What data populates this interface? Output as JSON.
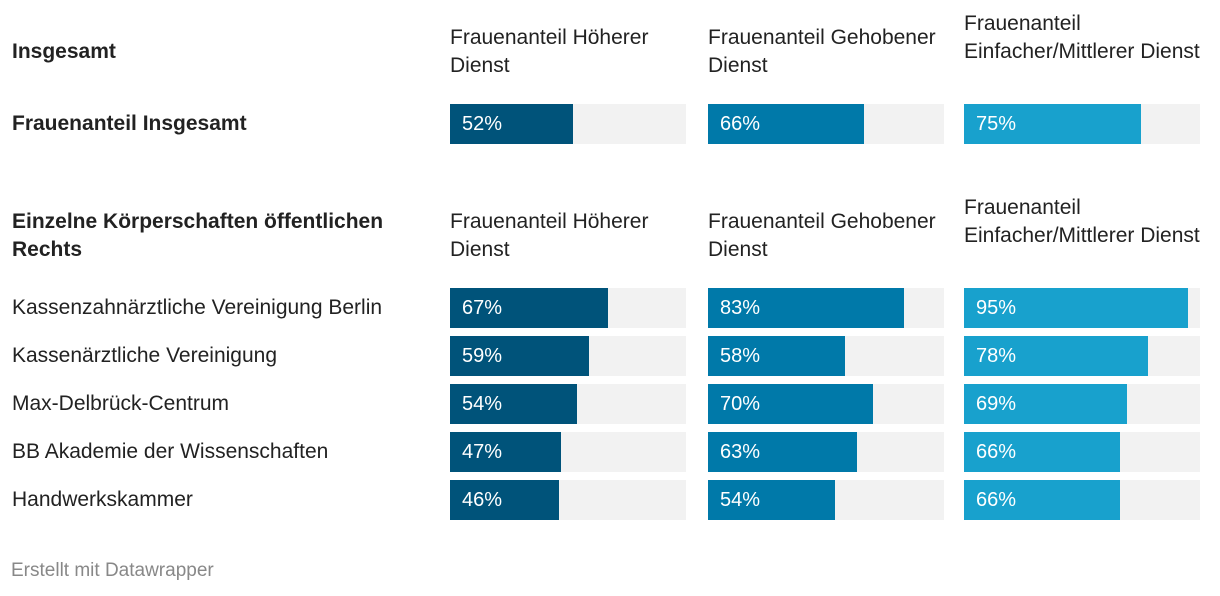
{
  "chart_data": {
    "type": "table",
    "columns": [
      "Frauenanteil Höherer Dienst",
      "Frauenanteil Gehobener Dienst",
      "Frauenanteil Einfacher/Mittlerer Dienst"
    ],
    "column_colors": [
      "#00537a",
      "#0079a9",
      "#18a1cd"
    ],
    "unit": "%",
    "value_range": [
      0,
      100
    ],
    "sections": [
      {
        "title": "Insgesamt",
        "rows": [
          {
            "label": "Frauenanteil Insgesamt",
            "values": [
              52,
              66,
              75
            ],
            "bold": true
          }
        ]
      },
      {
        "title": "Einzelne Körperschaften öffentlichen Rechts",
        "rows": [
          {
            "label": "Kassenzahnärztliche Vereinigung Berlin",
            "values": [
              67,
              83,
              95
            ]
          },
          {
            "label": "Kassenärztliche Vereinigung",
            "values": [
              59,
              58,
              78
            ]
          },
          {
            "label": "Max-Delbrück-Centrum",
            "values": [
              54,
              70,
              69
            ]
          },
          {
            "label": "BB Akademie der Wissenschaften",
            "values": [
              47,
              63,
              66
            ]
          },
          {
            "label": "Handwerkskammer",
            "values": [
              46,
              54,
              66
            ]
          }
        ]
      }
    ]
  },
  "footer": "Erstellt mit Datawrapper"
}
